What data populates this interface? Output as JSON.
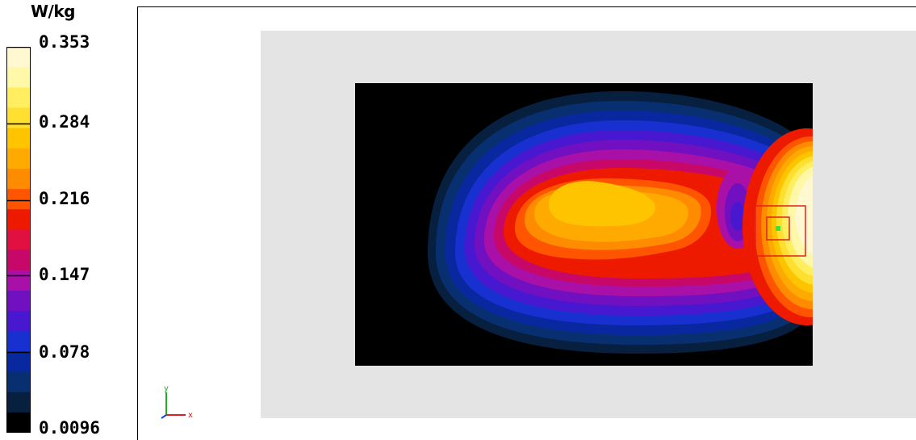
{
  "legend": {
    "unit": "W/kg",
    "labels": [
      "0.353",
      "0.284",
      "0.216",
      "0.147",
      "0.078",
      "0.0096"
    ],
    "colors_top_to_bottom": [
      "#fff8d0",
      "#fff8a8",
      "#ffee60",
      "#ffe030",
      "#ffc400",
      "#ffaa00",
      "#ff8c00",
      "#ff5500",
      "#ee1a00",
      "#e01040",
      "#c80868",
      "#a810a8",
      "#7010c0",
      "#4818d0",
      "#1830d0",
      "#0828a0",
      "#083070",
      "#082040",
      "#000000"
    ]
  },
  "chart_data": {
    "type": "heatmap",
    "title": "",
    "colorbar": {
      "unit": "W/kg",
      "min": 0.0096,
      "max": 0.353,
      "ticks": [
        0.353,
        0.284,
        0.216,
        0.147,
        0.078,
        0.0096
      ]
    },
    "peak_marker": "green-square-with-red-box",
    "axes_indicator": {
      "x_label": "x",
      "y_label": "y"
    }
  },
  "colors": {
    "background": "#ffffff",
    "sheet": "#e4e4e4",
    "map_background": "#000000",
    "marker_box": "#e02020",
    "marker_point": "#40e040"
  }
}
